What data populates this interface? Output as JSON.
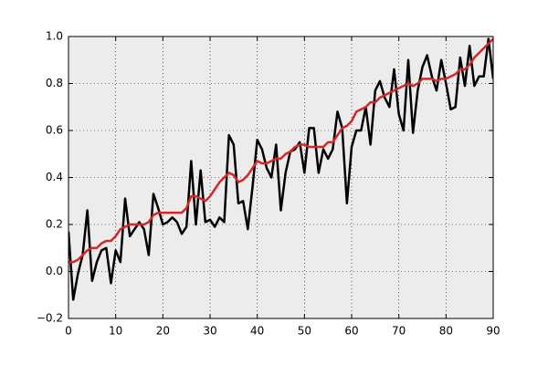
{
  "chart_data": {
    "type": "line",
    "x": [
      0,
      1,
      2,
      3,
      4,
      5,
      6,
      7,
      8,
      9,
      10,
      11,
      12,
      13,
      14,
      15,
      16,
      17,
      18,
      19,
      20,
      21,
      22,
      23,
      24,
      25,
      26,
      27,
      28,
      29,
      30,
      31,
      32,
      33,
      34,
      35,
      36,
      37,
      38,
      39,
      40,
      41,
      42,
      43,
      44,
      45,
      46,
      47,
      48,
      49,
      50,
      51,
      52,
      53,
      54,
      55,
      56,
      57,
      58,
      59,
      60,
      61,
      62,
      63,
      64,
      65,
      66,
      67,
      68,
      69,
      70,
      71,
      72,
      73,
      74,
      75,
      76,
      77,
      78,
      79,
      80,
      81,
      82,
      83,
      84,
      85,
      86,
      87,
      88,
      89,
      90
    ],
    "series": [
      {
        "color": "#000000",
        "values": [
          0.17,
          -0.12,
          -0.01,
          0.07,
          0.26,
          -0.04,
          0.04,
          0.09,
          0.1,
          -0.05,
          0.09,
          0.04,
          0.31,
          0.15,
          0.18,
          0.21,
          0.18,
          0.07,
          0.33,
          0.27,
          0.2,
          0.21,
          0.23,
          0.21,
          0.16,
          0.19,
          0.47,
          0.2,
          0.43,
          0.21,
          0.22,
          0.19,
          0.23,
          0.21,
          0.58,
          0.54,
          0.29,
          0.3,
          0.18,
          0.36,
          0.56,
          0.52,
          0.44,
          0.4,
          0.54,
          0.26,
          0.42,
          0.51,
          0.52,
          0.55,
          0.42,
          0.61,
          0.61,
          0.42,
          0.52,
          0.48,
          0.52,
          0.68,
          0.61,
          0.29,
          0.53,
          0.6,
          0.6,
          0.7,
          0.54,
          0.77,
          0.81,
          0.74,
          0.7,
          0.86,
          0.67,
          0.6,
          0.9,
          0.59,
          0.77,
          0.87,
          0.92,
          0.83,
          0.77,
          0.9,
          0.8,
          0.69,
          0.7,
          0.91,
          0.79,
          0.96,
          0.79,
          0.83,
          0.83,
          0.99,
          0.82
        ]
      },
      {
        "color": "#d62728",
        "values": [
          0.04,
          0.04,
          0.05,
          0.07,
          0.09,
          0.1,
          0.1,
          0.12,
          0.13,
          0.13,
          0.15,
          0.18,
          0.19,
          0.2,
          0.2,
          0.2,
          0.2,
          0.21,
          0.24,
          0.25,
          0.25,
          0.25,
          0.25,
          0.25,
          0.25,
          0.27,
          0.32,
          0.32,
          0.31,
          0.3,
          0.32,
          0.35,
          0.38,
          0.4,
          0.42,
          0.41,
          0.38,
          0.39,
          0.41,
          0.44,
          0.47,
          0.46,
          0.46,
          0.47,
          0.48,
          0.48,
          0.5,
          0.51,
          0.53,
          0.54,
          0.54,
          0.53,
          0.53,
          0.53,
          0.53,
          0.55,
          0.55,
          0.58,
          0.61,
          0.62,
          0.64,
          0.68,
          0.69,
          0.7,
          0.72,
          0.72,
          0.74,
          0.75,
          0.76,
          0.77,
          0.78,
          0.79,
          0.8,
          0.79,
          0.8,
          0.82,
          0.82,
          0.82,
          0.81,
          0.82,
          0.82,
          0.83,
          0.84,
          0.86,
          0.86,
          0.88,
          0.91,
          0.93,
          0.95,
          0.97,
          0.99
        ]
      }
    ],
    "xlim": [
      0,
      90
    ],
    "xticks": [
      0,
      10,
      20,
      30,
      40,
      50,
      60,
      70,
      80,
      90
    ],
    "ylim": [
      -0.2,
      1.0
    ],
    "yticks": [
      {
        "value": -0.2,
        "label": "−0.2"
      },
      {
        "value": 0,
        "label": "0.0"
      },
      0.2,
      0.4,
      0.6,
      0.8,
      {
        "value": 1.0,
        "label": "1.0"
      }
    ],
    "grid": true
  }
}
